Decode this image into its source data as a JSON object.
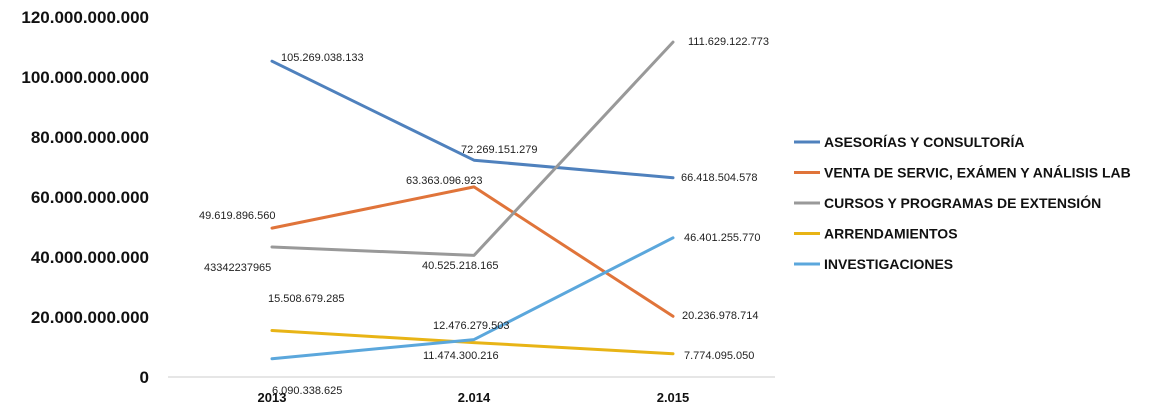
{
  "chart_data": {
    "type": "line",
    "categories": [
      "2013",
      "2.014",
      "2.015"
    ],
    "ylim": [
      0,
      120000000000
    ],
    "yticks": [
      {
        "value": 0,
        "label": "0"
      },
      {
        "value": 20000000000,
        "label": "20.000.000.000"
      },
      {
        "value": 40000000000,
        "label": "40.000.000.000"
      },
      {
        "value": 60000000000,
        "label": "60.000.000.000"
      },
      {
        "value": 80000000000,
        "label": "80.000.000.000"
      },
      {
        "value": 100000000000,
        "label": "100.000.000.000"
      },
      {
        "value": 120000000000,
        "label": "120.000.000.000"
      }
    ],
    "legend_position": "right",
    "grid": false,
    "series": [
      {
        "name": "ASESORÍAS Y CONSULTORÍA",
        "color": "#4f81bd",
        "values": [
          105269038133,
          72269151279,
          66418504578
        ],
        "labels": [
          "105.269.038.133",
          "72.269.151.279",
          "66.418.504.578"
        ]
      },
      {
        "name": "VENTA DE SERVIC, EXÁMEN Y ANÁLISIS LAB",
        "color": "#e0743a",
        "values": [
          49619896560,
          63363096923,
          20236978714
        ],
        "labels": [
          "49.619.896.560",
          "63.363.096.923",
          "20.236.978.714"
        ]
      },
      {
        "name": "CURSOS Y PROGRAMAS DE EXTENSIÓN",
        "color": "#999999",
        "values": [
          43342237965,
          40525218165,
          111629122773
        ],
        "labels": [
          "43342237965",
          "40.525.218.165",
          "111.629.122.773"
        ]
      },
      {
        "name": "ARRENDAMIENTOS",
        "color": "#e8b416",
        "values": [
          15508679285,
          11474300216,
          7774095050
        ],
        "labels": [
          "15.508.679.285",
          "11.474.300.216",
          "7.774.095.050"
        ]
      },
      {
        "name": "INVESTIGACIONES",
        "color": "#5ba7dc",
        "values": [
          6090338625,
          12476279503,
          46401255770
        ],
        "labels": [
          "6.090.338.625",
          "12.476.279.503",
          "46.401.255.770"
        ]
      }
    ]
  }
}
